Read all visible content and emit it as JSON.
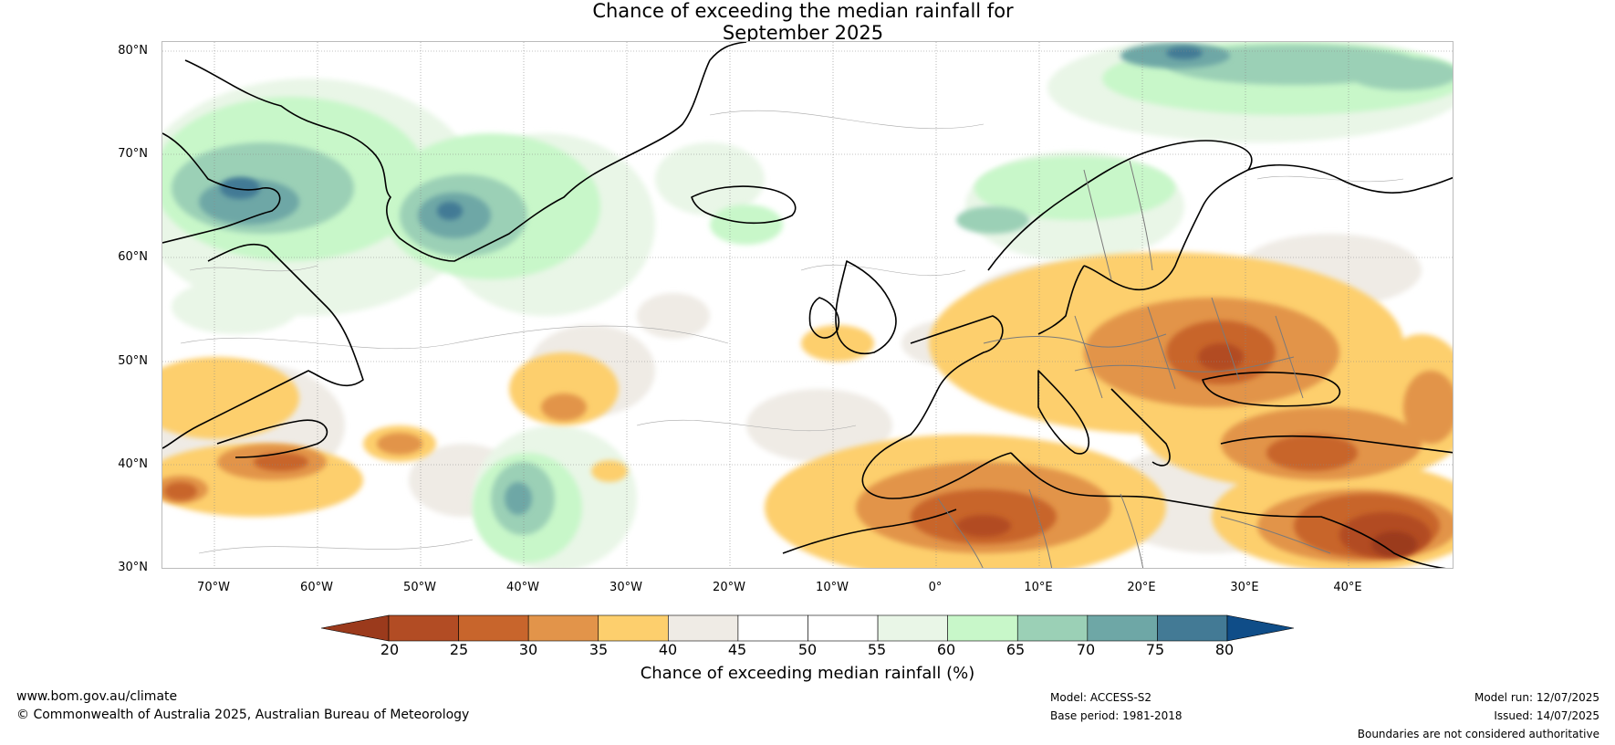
{
  "title": {
    "line1": "Chance of exceeding the median rainfall for",
    "line2": "September 2025"
  },
  "map": {
    "lat_labels": [
      "80°N",
      "70°N",
      "60°N",
      "50°N",
      "40°N",
      "30°N"
    ],
    "lon_labels": [
      "70°W",
      "60°W",
      "50°W",
      "40°W",
      "30°W",
      "20°W",
      "10°W",
      "0°",
      "10°E",
      "20°E",
      "30°E",
      "40°E"
    ]
  },
  "legend": {
    "title": "Chance of exceeding median rainfall (%)",
    "ticks": [
      "20",
      "25",
      "30",
      "35",
      "40",
      "45",
      "50",
      "55",
      "60",
      "65",
      "70",
      "75",
      "80"
    ],
    "colors": [
      "#9b3a1c",
      "#b24c24",
      "#c8652c",
      "#e2944a",
      "#fdcf6d",
      "#efebe5",
      "#ffffff",
      "#ffffff",
      "#e9f6e7",
      "#c8f7c9",
      "#9bd0b6",
      "#6ea7a6",
      "#437a95",
      "#0f4d88"
    ]
  },
  "footer": {
    "website": "www.bom.gov.au/climate",
    "copyright": "© Commonwealth of Australia 2025, Australian Bureau of Meteorology",
    "model": "Model: ACCESS-S2",
    "base_period": "Base period: 1981-2018",
    "model_run": "Model run: 12/07/2025",
    "issued": "Issued: 14/07/2025",
    "disclaimer": "Boundaries are not considered authoritative"
  }
}
